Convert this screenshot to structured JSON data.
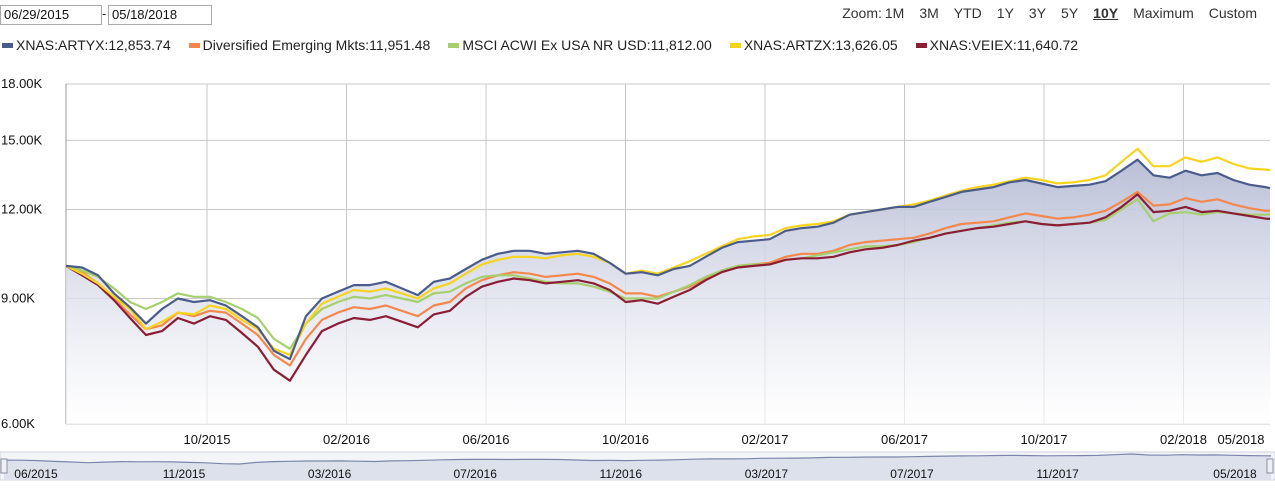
{
  "date_range": {
    "start": "06/29/2015",
    "end": "05/18/2018",
    "separator": "-"
  },
  "zoom": {
    "label": "Zoom:",
    "options": [
      "1M",
      "3M",
      "YTD",
      "1Y",
      "3Y",
      "5Y",
      "10Y",
      "Maximum",
      "Custom"
    ],
    "active": "10Y"
  },
  "colors": {
    "grid": "#c8c8c8",
    "area_top": "#b9bfd6",
    "area_bottom": "#ffffff"
  },
  "chart_data": {
    "type": "line",
    "x_start": "2015-06-29",
    "x_end": "2018-05-18",
    "y_scale": "log",
    "ylim": [
      6000,
      18000
    ],
    "y_ticks": [
      {
        "value": 6000,
        "label": "6.00K"
      },
      {
        "value": 9000,
        "label": "9.00K"
      },
      {
        "value": 12000,
        "label": "12.00K"
      },
      {
        "value": 15000,
        "label": "15.00K"
      },
      {
        "value": 18000,
        "label": "18.00K"
      }
    ],
    "x_ticks": [
      "10/2015",
      "02/2016",
      "06/2016",
      "10/2016",
      "02/2017",
      "06/2017",
      "10/2017",
      "02/2018",
      "05/2018"
    ],
    "navigator_ticks": [
      "06/2015",
      "11/2015",
      "03/2016",
      "07/2016",
      "11/2016",
      "03/2017",
      "07/2017",
      "11/2017",
      "05/2018"
    ],
    "grid": true,
    "dates": [
      "2015-06-29",
      "2015-07-13",
      "2015-07-27",
      "2015-08-10",
      "2015-08-24",
      "2015-09-07",
      "2015-09-21",
      "2015-10-05",
      "2015-10-19",
      "2015-11-02",
      "2015-11-16",
      "2015-11-30",
      "2015-12-14",
      "2015-12-28",
      "2016-01-11",
      "2016-01-25",
      "2016-02-08",
      "2016-02-22",
      "2016-03-07",
      "2016-03-21",
      "2016-04-04",
      "2016-04-18",
      "2016-05-02",
      "2016-05-16",
      "2016-05-30",
      "2016-06-13",
      "2016-06-27",
      "2016-07-11",
      "2016-07-25",
      "2016-08-08",
      "2016-08-22",
      "2016-09-05",
      "2016-09-19",
      "2016-10-03",
      "2016-10-17",
      "2016-10-31",
      "2016-11-14",
      "2016-11-28",
      "2016-12-12",
      "2016-12-26",
      "2017-01-09",
      "2017-01-23",
      "2017-02-06",
      "2017-02-20",
      "2017-03-06",
      "2017-03-20",
      "2017-04-03",
      "2017-04-17",
      "2017-05-01",
      "2017-05-15",
      "2017-05-29",
      "2017-06-12",
      "2017-06-26",
      "2017-07-10",
      "2017-07-24",
      "2017-08-07",
      "2017-08-21",
      "2017-09-04",
      "2017-09-18",
      "2017-10-02",
      "2017-10-16",
      "2017-10-30",
      "2017-11-13",
      "2017-11-27",
      "2017-12-11",
      "2017-12-25",
      "2018-01-08",
      "2018-01-22",
      "2018-02-05",
      "2018-02-19",
      "2018-03-05",
      "2018-03-19",
      "2018-04-02",
      "2018-04-16",
      "2018-04-30",
      "2018-05-14",
      "2018-05-18"
    ],
    "series": [
      {
        "name": "XNAS:ARTYX",
        "label": "XNAS:ARTYX:12,853.74",
        "color": "#4a5c8c",
        "filled": true,
        "values": [
          10000,
          9950,
          9700,
          9150,
          8750,
          8300,
          8700,
          9000,
          8900,
          8950,
          8800,
          8500,
          8200,
          7600,
          7400,
          8500,
          9000,
          9200,
          9400,
          9400,
          9500,
          9300,
          9100,
          9500,
          9600,
          9900,
          10200,
          10400,
          10500,
          10500,
          10400,
          10450,
          10500,
          10400,
          10100,
          9750,
          9800,
          9700,
          9900,
          10000,
          10300,
          10600,
          10800,
          10850,
          10900,
          11200,
          11300,
          11350,
          11500,
          11800,
          11900,
          12000,
          12100,
          12100,
          12300,
          12500,
          12700,
          12800,
          12900,
          13100,
          13200,
          13050,
          12900,
          12950,
          13000,
          13150,
          13600,
          14100,
          13400,
          13300,
          13600,
          13400,
          13500,
          13200,
          13000,
          12900,
          12853.74
        ]
      },
      {
        "name": "Diversified Emerging Mkts",
        "label": "Diversified Emerging Mkts:11,951.48",
        "color": "#f4874b",
        "filled": false,
        "values": [
          10000,
          9800,
          9450,
          9000,
          8550,
          8150,
          8250,
          8600,
          8500,
          8650,
          8600,
          8300,
          8000,
          7500,
          7250,
          7900,
          8400,
          8600,
          8750,
          8700,
          8800,
          8650,
          8500,
          8800,
          8900,
          9300,
          9550,
          9700,
          9800,
          9750,
          9650,
          9700,
          9750,
          9650,
          9450,
          9150,
          9150,
          9050,
          9200,
          9350,
          9600,
          9850,
          10000,
          10050,
          10100,
          10300,
          10400,
          10400,
          10500,
          10700,
          10800,
          10850,
          10900,
          10950,
          11100,
          11300,
          11450,
          11500,
          11550,
          11700,
          11850,
          11750,
          11650,
          11700,
          11800,
          11950,
          12300,
          12700,
          12150,
          12200,
          12450,
          12300,
          12400,
          12200,
          12050,
          11950,
          11951.48
        ]
      },
      {
        "name": "MSCI ACWI Ex USA NR USD",
        "label": "MSCI ACWI Ex USA NR USD:11,812.00",
        "color": "#a6cf6e",
        "filled": false,
        "values": [
          10000,
          9850,
          9650,
          9300,
          8900,
          8700,
          8900,
          9150,
          9050,
          9050,
          8900,
          8700,
          8450,
          7900,
          7650,
          8300,
          8700,
          8900,
          9050,
          9000,
          9100,
          9000,
          8900,
          9150,
          9200,
          9450,
          9650,
          9700,
          9700,
          9600,
          9500,
          9450,
          9450,
          9350,
          9200,
          9000,
          9000,
          9000,
          9200,
          9400,
          9650,
          9850,
          10000,
          10050,
          10050,
          10200,
          10250,
          10350,
          10450,
          10550,
          10650,
          10650,
          10700,
          10800,
          10950,
          11100,
          11200,
          11300,
          11400,
          11500,
          11550,
          11450,
          11400,
          11450,
          11500,
          11600,
          12000,
          12400,
          11550,
          11850,
          11900,
          11800,
          11900,
          11850,
          11800,
          11800,
          11812.0
        ]
      },
      {
        "name": "XNAS:ARTZX",
        "label": "XNAS:ARTZX:13,626.05",
        "color": "#f7d41c",
        "filled": false,
        "values": [
          10000,
          9750,
          9450,
          9050,
          8700,
          8150,
          8350,
          8600,
          8550,
          8800,
          8700,
          8400,
          8150,
          7650,
          7500,
          8300,
          8850,
          9050,
          9250,
          9200,
          9300,
          9150,
          9000,
          9300,
          9450,
          9750,
          10050,
          10200,
          10300,
          10300,
          10250,
          10350,
          10400,
          10300,
          10100,
          9750,
          9850,
          9750,
          9950,
          10150,
          10400,
          10650,
          10900,
          11000,
          11050,
          11300,
          11400,
          11450,
          11550,
          11800,
          11900,
          12000,
          12100,
          12200,
          12350,
          12550,
          12750,
          12900,
          13000,
          13150,
          13300,
          13200,
          13050,
          13100,
          13200,
          13400,
          14000,
          14600,
          13800,
          13800,
          14200,
          14000,
          14200,
          13900,
          13700,
          13650,
          13626.05
        ]
      },
      {
        "name": "XNAS:VEIEX",
        "label": "XNAS:VEIEX:11,640.72",
        "color": "#8b1e35",
        "filled": false,
        "values": [
          10000,
          9700,
          9400,
          8950,
          8450,
          8000,
          8100,
          8450,
          8300,
          8500,
          8400,
          8050,
          7700,
          7150,
          6900,
          7500,
          8100,
          8300,
          8450,
          8400,
          8500,
          8350,
          8200,
          8550,
          8650,
          9050,
          9350,
          9500,
          9600,
          9550,
          9450,
          9500,
          9550,
          9450,
          9250,
          8900,
          8950,
          8850,
          9050,
          9250,
          9550,
          9800,
          9950,
          10000,
          10050,
          10200,
          10250,
          10250,
          10300,
          10450,
          10550,
          10600,
          10700,
          10850,
          10950,
          11100,
          11200,
          11300,
          11350,
          11450,
          11550,
          11450,
          11400,
          11450,
          11500,
          11700,
          12100,
          12600,
          11900,
          11950,
          12100,
          11900,
          11950,
          11850,
          11750,
          11650,
          11640.72
        ]
      }
    ]
  }
}
